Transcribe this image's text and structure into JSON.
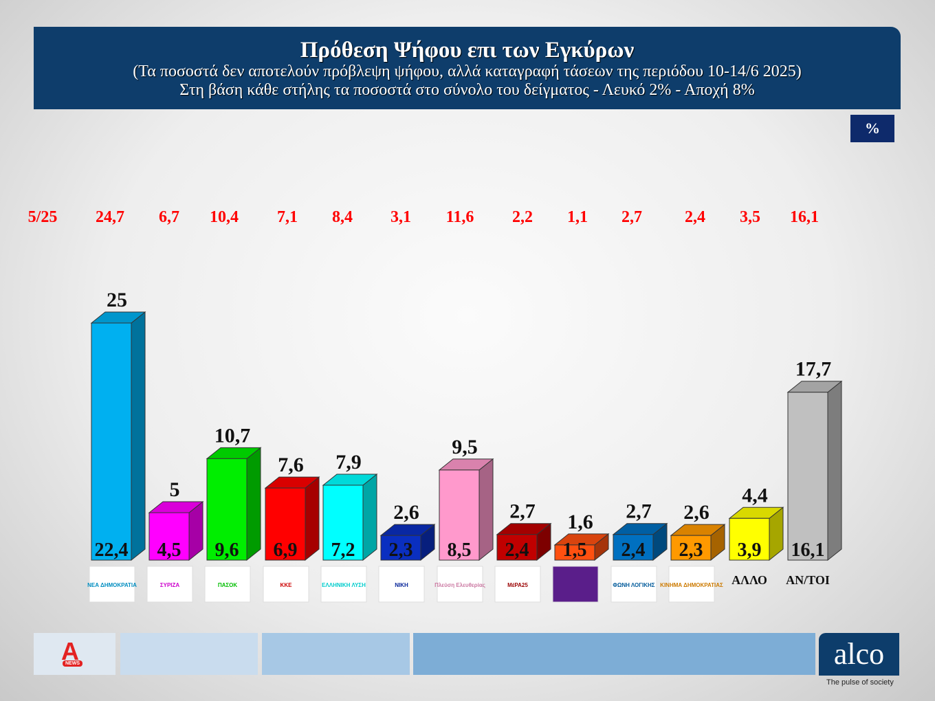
{
  "header": {
    "title": "Πρόθεση Ψήφου επι των Εγκύρων",
    "subtitle1": "(Τα ποσοστά δεν αποτελούν πρόβλεψη ψήφου, αλλά καταγραφή τάσεων της περιόδου  10-14/6 2025)",
    "subtitle2": "Στη βάση κάθε στήλης τα ποσοστά στο σύνολο του δείγματος - Λευκό 2% - Αποχή 8%"
  },
  "unit_badge": "%",
  "chart_data": {
    "type": "bar",
    "categories": [
      "ΝΕΑ ΔΗΜΟΚΡΑΤΙΑ",
      "ΣΥΡΙΖΑ",
      "ΠΑΣΟΚ",
      "ΚΚΕ",
      "ΕΛΛΗΝΙΚΗ ΛΥΣΗ",
      "ΝΙΚΗ",
      "Πλεύση Ελευθερίας",
      "ΜέΡΑ25",
      "",
      "ΦΩΝΗ ΛΟΓΙΚΗΣ",
      "ΚΙΝΗΜΑ ΔΗΜΟΚΡΑΤΙΑΣ",
      "ΑΛΛΟ",
      "ΑΝ/ΤΟΙ"
    ],
    "values": [
      "25",
      "5",
      "10,7",
      "7,6",
      "7,9",
      "2,6",
      "9,5",
      "2,7",
      "1,6",
      "2,7",
      "2,6",
      "4,4",
      "17,7"
    ],
    "base_values": [
      "22,4",
      "4,5",
      "9,6",
      "6,9",
      "7,2",
      "2,3",
      "8,5",
      "2,4",
      "1,5",
      "2,4",
      "2,3",
      "3,9",
      "16,1"
    ],
    "previous_label": "5/25",
    "previous_values": [
      "24,7",
      "6,7",
      "10,4",
      "7,1",
      "8,4",
      "3,1",
      "11,6",
      "2,2",
      "1,1",
      "2,7",
      "2,4",
      "3,5",
      "16,1"
    ],
    "colors": [
      "#00b0f0",
      "#ff00ff",
      "#00ee00",
      "#ff0000",
      "#00ffff",
      "#0a2fc0",
      "#ff99cc",
      "#c00000",
      "#ff5010",
      "#0070c0",
      "#ff9900",
      "#ffff00",
      "#c0c0c0"
    ],
    "text_labels": [
      "ΑΛΛΟ",
      "ΑΝ/ΤΟΙ"
    ],
    "ylim": [
      0,
      25
    ],
    "grid": false,
    "style": "3d-bar"
  },
  "footer": {
    "brand": "alco",
    "tagline": "The pulse of society",
    "alpha_logo": "A",
    "alpha_news": "NEWS"
  }
}
